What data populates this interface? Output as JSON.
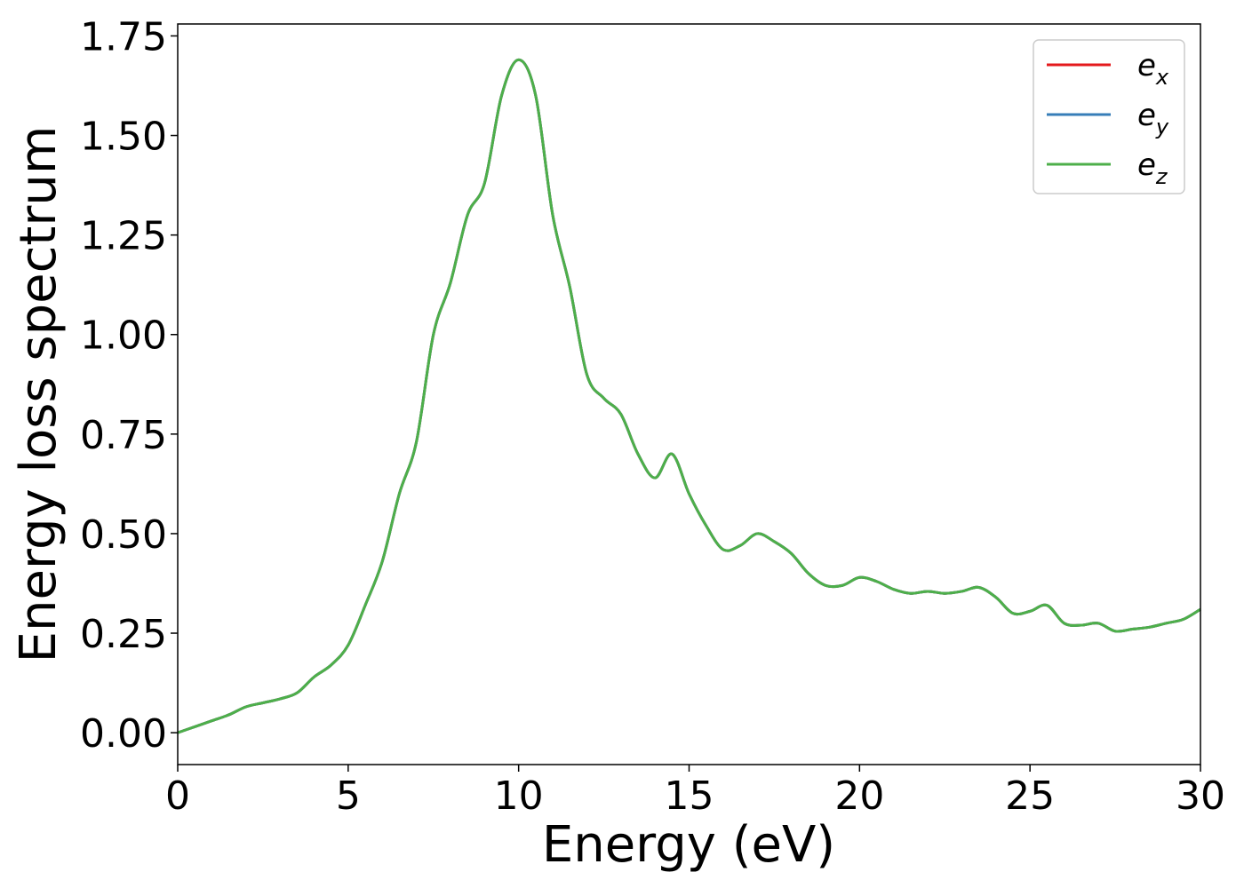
{
  "chart_data": {
    "type": "line",
    "xlabel": "Energy (eV)",
    "ylabel": "Energy loss spectrum",
    "xlim": [
      0,
      30
    ],
    "ylim": [
      -0.08,
      1.78
    ],
    "xticks": [
      0,
      5,
      10,
      15,
      20,
      25,
      30
    ],
    "xtick_labels": [
      "0",
      "5",
      "10",
      "15",
      "20",
      "25",
      "30"
    ],
    "yticks": [
      0,
      0.25,
      0.5,
      0.75,
      1.0,
      1.25,
      1.5,
      1.75
    ],
    "ytick_labels": [
      "0.00",
      "0.25",
      "0.50",
      "0.75",
      "1.00",
      "1.25",
      "1.50",
      "1.75"
    ],
    "grid": false,
    "legend_position": "top-right",
    "x": [
      0,
      0.5,
      1,
      1.5,
      2,
      2.5,
      3,
      3.5,
      4,
      4.5,
      5,
      5.5,
      6,
      6.5,
      7,
      7.5,
      8,
      8.5,
      9,
      9.5,
      10,
      10.5,
      11,
      11.5,
      12,
      12.5,
      13,
      13.5,
      14,
      14.5,
      15,
      15.5,
      16,
      16.5,
      17,
      17.5,
      18,
      18.5,
      19,
      19.5,
      20,
      20.5,
      21,
      21.5,
      22,
      22.5,
      23,
      23.5,
      24,
      24.5,
      25,
      25.5,
      26,
      26.5,
      27,
      27.5,
      28,
      28.5,
      29,
      29.5,
      30
    ],
    "series": [
      {
        "name": "e",
        "subscript": "x",
        "color": "#e41a1c",
        "values": [
          0.0,
          0.015,
          0.03,
          0.045,
          0.065,
          0.075,
          0.085,
          0.1,
          0.14,
          0.17,
          0.22,
          0.32,
          0.43,
          0.6,
          0.73,
          1.0,
          1.13,
          1.3,
          1.38,
          1.6,
          1.69,
          1.6,
          1.3,
          1.12,
          0.9,
          0.84,
          0.8,
          0.7,
          0.64,
          0.7,
          0.6,
          0.52,
          0.46,
          0.47,
          0.5,
          0.48,
          0.45,
          0.4,
          0.37,
          0.37,
          0.39,
          0.38,
          0.36,
          0.35,
          0.355,
          0.35,
          0.355,
          0.365,
          0.34,
          0.3,
          0.305,
          0.32,
          0.275,
          0.27,
          0.275,
          0.255,
          0.26,
          0.265,
          0.275,
          0.285,
          0.31
        ]
      },
      {
        "name": "e",
        "subscript": "y",
        "color": "#377eb8",
        "values": [
          0.0,
          0.015,
          0.03,
          0.045,
          0.065,
          0.075,
          0.085,
          0.1,
          0.14,
          0.17,
          0.22,
          0.32,
          0.43,
          0.6,
          0.73,
          1.0,
          1.13,
          1.3,
          1.38,
          1.6,
          1.69,
          1.6,
          1.3,
          1.12,
          0.9,
          0.84,
          0.8,
          0.7,
          0.64,
          0.7,
          0.6,
          0.52,
          0.46,
          0.47,
          0.5,
          0.48,
          0.45,
          0.4,
          0.37,
          0.37,
          0.39,
          0.38,
          0.36,
          0.35,
          0.355,
          0.35,
          0.355,
          0.365,
          0.34,
          0.3,
          0.305,
          0.32,
          0.275,
          0.27,
          0.275,
          0.255,
          0.26,
          0.265,
          0.275,
          0.285,
          0.31
        ]
      },
      {
        "name": "e",
        "subscript": "z",
        "color": "#4daf4a",
        "values": [
          0.0,
          0.015,
          0.03,
          0.045,
          0.065,
          0.075,
          0.085,
          0.1,
          0.14,
          0.17,
          0.22,
          0.32,
          0.43,
          0.6,
          0.73,
          1.0,
          1.13,
          1.3,
          1.38,
          1.6,
          1.69,
          1.6,
          1.3,
          1.12,
          0.9,
          0.84,
          0.8,
          0.7,
          0.64,
          0.7,
          0.6,
          0.52,
          0.46,
          0.47,
          0.5,
          0.48,
          0.45,
          0.4,
          0.37,
          0.37,
          0.39,
          0.38,
          0.36,
          0.35,
          0.355,
          0.35,
          0.355,
          0.365,
          0.34,
          0.3,
          0.305,
          0.32,
          0.275,
          0.27,
          0.275,
          0.255,
          0.26,
          0.265,
          0.275,
          0.285,
          0.31
        ]
      }
    ]
  }
}
